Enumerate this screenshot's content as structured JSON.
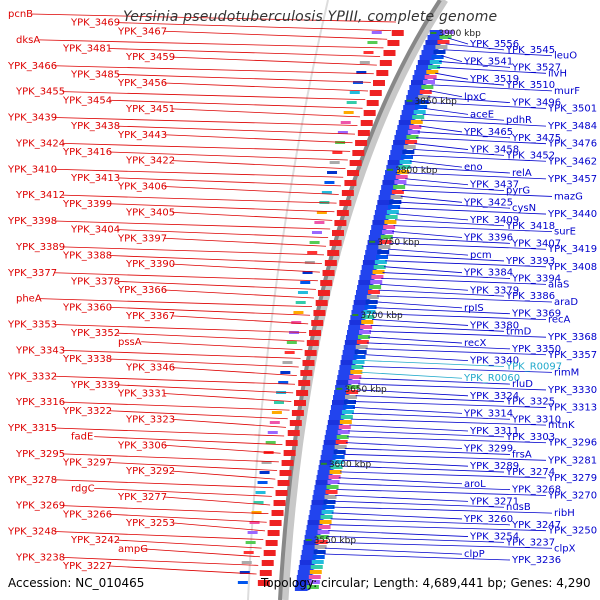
{
  "title": "Yersinia pseudotuberculosis YPIII, complete genome",
  "footer": {
    "accession": "Accession: NC_010465",
    "topology": "Topology: circular; Length: 4,689,441 bp; Genes: 4,290"
  },
  "colors": {
    "left_label": "#dd0000",
    "right_label": "#0000cc",
    "rna_label": "#22aacc",
    "backbone": "#888888",
    "tick": "#2a8a2a"
  },
  "kbp_ticks": [
    {
      "label": "3900 kbp",
      "y": 0.055
    },
    {
      "label": "3850 kbp",
      "y": 0.168
    },
    {
      "label": "3800 kbp",
      "y": 0.283
    },
    {
      "label": "3750 kbp",
      "y": 0.403
    },
    {
      "label": "3700 kbp",
      "y": 0.525
    },
    {
      "label": "3650 kbp",
      "y": 0.648
    },
    {
      "label": "3600 kbp",
      "y": 0.773
    },
    {
      "label": "3550 kbp",
      "y": 0.9
    }
  ],
  "left_labels": [
    "pcnB",
    "YPK_3469",
    "YPK_3467",
    "dksA",
    "YPK_3481",
    "YPK_3459",
    "YPK_3466",
    "YPK_3485",
    "YPK_3456",
    "YPK_3455",
    "YPK_3454",
    "YPK_3451",
    "YPK_3439",
    "YPK_3438",
    "YPK_3443",
    "YPK_3424",
    "YPK_3416",
    "YPK_3422",
    "YPK_3410",
    "YPK_3413",
    "YPK_3406",
    "YPK_3412",
    "YPK_3399",
    "YPK_3405",
    "YPK_3398",
    "YPK_3404",
    "YPK_3397",
    "YPK_3389",
    "YPK_3388",
    "YPK_3390",
    "YPK_3377",
    "YPK_3378",
    "YPK_3366",
    "pheA",
    "YPK_3360",
    "YPK_3367",
    "YPK_3353",
    "YPK_3352",
    "pssA",
    "YPK_3343",
    "YPK_3338",
    "YPK_3346",
    "YPK_3332",
    "YPK_3339",
    "YPK_3331",
    "YPK_3316",
    "YPK_3322",
    "YPK_3323",
    "YPK_3315",
    "fadE",
    "YPK_3306",
    "YPK_3295",
    "YPK_3297",
    "YPK_3292",
    "YPK_3278",
    "rdgC",
    "YPK_3277",
    "YPK_3269",
    "YPK_3266",
    "YPK_3253",
    "YPK_3248",
    "YPK_3242",
    "ampG",
    "YPK_3238",
    "YPK_3227"
  ],
  "right_labels": [
    "YPK_3556",
    "YPK_3545",
    "leuO",
    "YPK_3541",
    "YPK_3527",
    "ilvH",
    "YPK_3519",
    "YPK_3510",
    "murF",
    "lpxC",
    "YPK_3496",
    "YPK_3501",
    "aceE",
    "pdhR",
    "YPK_3484",
    "YPK_3465",
    "YPK_3475",
    "YPK_3476",
    "YPK_3458",
    "YPK_3452",
    "YPK_3462",
    "eno",
    "relA",
    "YPK_3457",
    "YPK_3437",
    "pyrG",
    "mazG",
    "YPK_3425",
    "cysN",
    "YPK_3440",
    "YPK_3409",
    "YPK_3418",
    "surE",
    "YPK_3396",
    "YPK_3407",
    "YPK_3419",
    "pcm",
    "YPK_3393",
    "YPK_3408",
    "YPK_3384",
    "YPK_3394",
    "alaS",
    "YPK_3379",
    "YPK_3386",
    "araD",
    "rpIS",
    "YPK_3369",
    "recA",
    "YPK_3380",
    "trmD",
    "YPK_3368",
    "recX",
    "YPK_3350",
    "YPK_3357",
    "YPK_3340",
    "YPK_R0097",
    "rimM",
    "YPK_R0060",
    "rluD",
    "YPK_3330",
    "YPK_3324",
    "YPK_3325",
    "YPK_3313",
    "YPK_3314",
    "YPK_3310",
    "mtnK",
    "YPK_3311",
    "YPK_3303",
    "YPK_3296",
    "YPK_3299",
    "frsA",
    "YPK_3281",
    "YPK_3289",
    "YPK_3274",
    "YPK_3279",
    "aroL",
    "YPK_3268",
    "YPK_3270",
    "YPK_3271",
    "nusB",
    "ribH",
    "YPK_3260",
    "YPK_3247",
    "YPK_3250",
    "YPK_3254",
    "YPK_3237",
    "clpX",
    "clpP",
    "YPK_3236"
  ],
  "rna_labels": [
    "YPK_R0097",
    "YPK_R0060"
  ]
}
